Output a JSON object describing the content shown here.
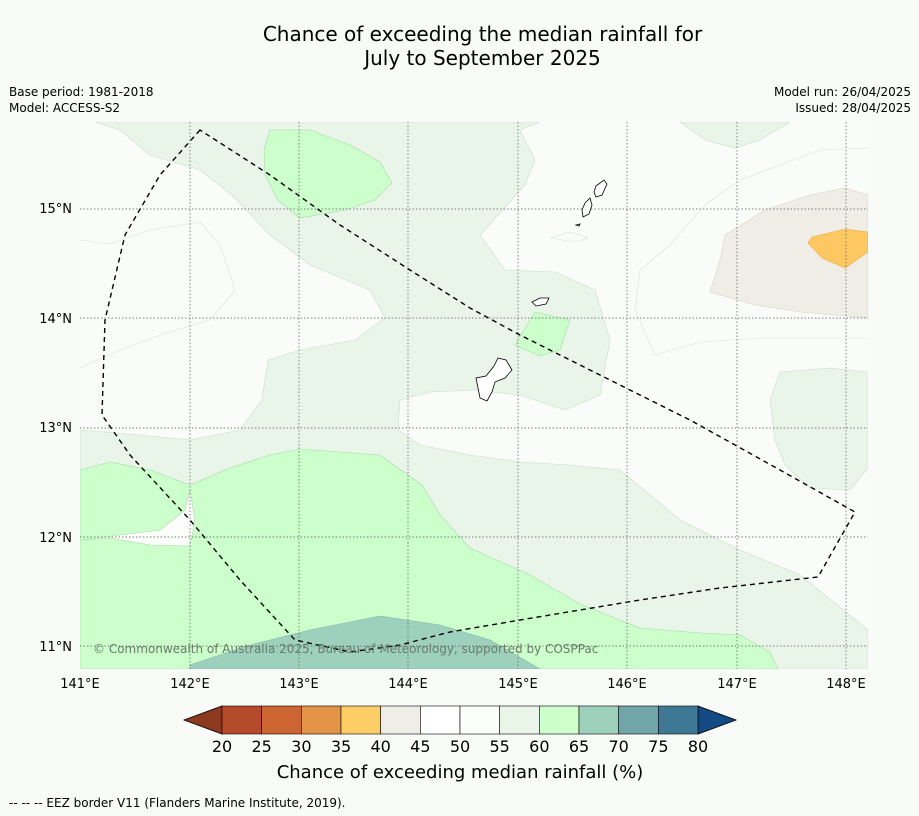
{
  "title_line1": "Chance of exceeding the median rainfall for",
  "title_line2": "July to September 2025",
  "meta_left": [
    "Base period: 1981-2018",
    "Model: ACCESS-S2"
  ],
  "meta_right": [
    "Model run: 26/04/2025",
    "Issued: 28/04/2025"
  ],
  "copyright": "© Commonwealth of Australia 2025, Bureau of Meteorology, supported by COSPPac",
  "footer": "-- -- -- EEZ border V11 (Flanders Marine Institute, 2019).",
  "map": {
    "lon_range": [
      141.0,
      148.2
    ],
    "lat_range": [
      10.8,
      15.8
    ],
    "lon_ticks": [
      "141°E",
      "142°E",
      "143°E",
      "144°E",
      "145°E",
      "146°E",
      "147°E",
      "148°E"
    ],
    "lat_ticks": [
      "11°N",
      "12°N",
      "13°N",
      "14°N",
      "15°N"
    ],
    "gridlines": true
  },
  "colorbar": {
    "label": "Chance of exceeding median rainfall (%)",
    "ticks": [
      "20",
      "25",
      "30",
      "35",
      "40",
      "45",
      "50",
      "55",
      "60",
      "65",
      "70",
      "75",
      "80"
    ],
    "colors": [
      "#b34a2a",
      "#cd6532",
      "#e39447",
      "#fdce66",
      "#f0ede7",
      "#ffffff",
      "#fafdf9",
      "#eaf5ea",
      "#ccffcc",
      "#9dd1bd",
      "#71a6a8",
      "#3f7894"
    ],
    "under_color": "#8c3a20",
    "over_color": "#134a84"
  }
}
